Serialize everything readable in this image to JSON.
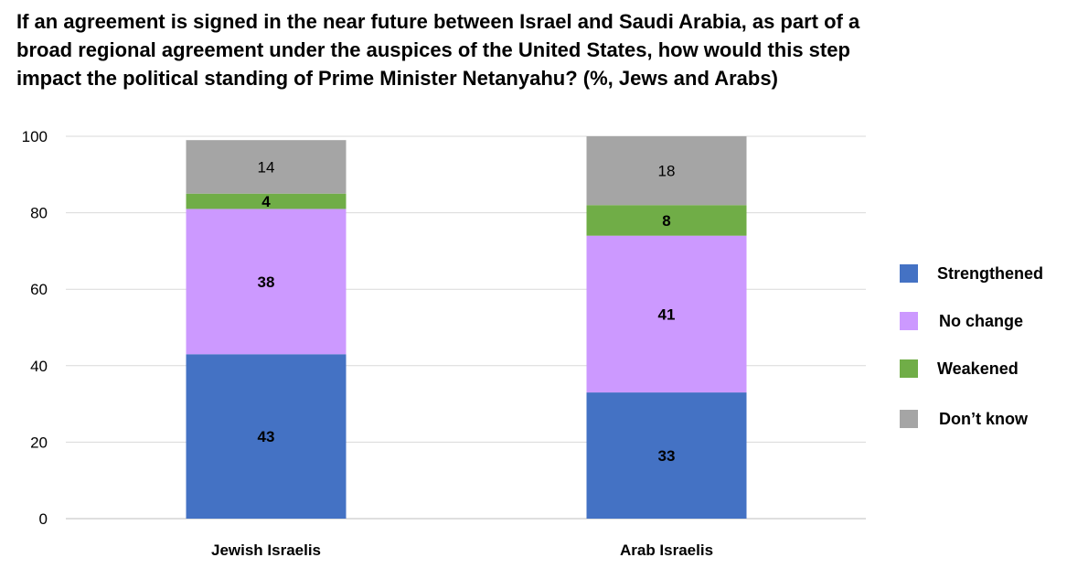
{
  "chart_data": {
    "type": "bar",
    "stacked": true,
    "title": "If an agreement is signed in the near future between Israel and Saudi Arabia, as part of a broad regional agreement under the auspices of the United States, how would this step impact the political standing of Prime Minister Netanyahu? (%, Jews and Arabs)",
    "categories": [
      "Jewish Israelis",
      "Arab Israelis"
    ],
    "series": [
      {
        "name": "Strengthened",
        "values": [
          43,
          33
        ],
        "color": "#4472c4"
      },
      {
        "name": "No change",
        "values": [
          38,
          41
        ],
        "color": "#cc99ff"
      },
      {
        "name": "Weakened",
        "values": [
          4,
          8
        ],
        "color": "#70ad47"
      },
      {
        "name": "Don’t know",
        "values": [
          14,
          18
        ],
        "color": "#a5a5a5"
      }
    ],
    "ylim": [
      0,
      100
    ],
    "yticks": [
      "0",
      "20",
      "40",
      "60",
      "80",
      "100"
    ],
    "grid": true,
    "legend_position": "right"
  }
}
